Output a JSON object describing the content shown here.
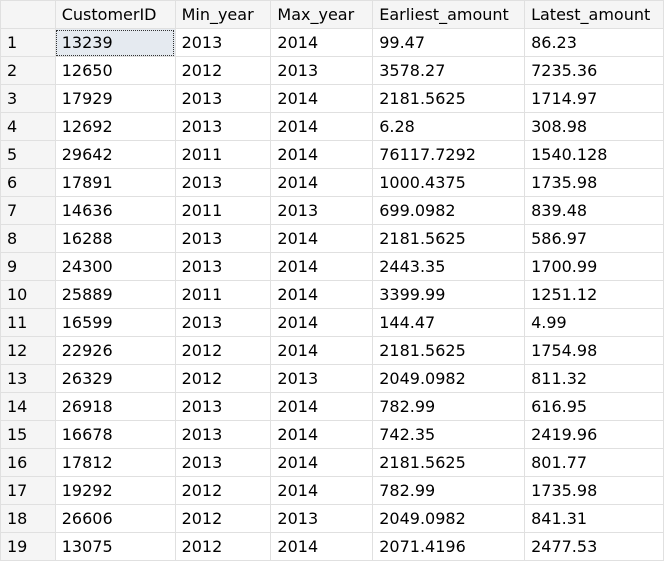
{
  "columns": [
    "",
    "CustomerID",
    "Min_year",
    "Max_year",
    "Earliest_amount",
    "Latest_amount"
  ],
  "rows": [
    [
      "1",
      "13239",
      "2013",
      "2014",
      "99.47",
      "86.23"
    ],
    [
      "2",
      "12650",
      "2012",
      "2013",
      "3578.27",
      "7235.36"
    ],
    [
      "3",
      "17929",
      "2013",
      "2014",
      "2181.5625",
      "1714.97"
    ],
    [
      "4",
      "12692",
      "2013",
      "2014",
      "6.28",
      "308.98"
    ],
    [
      "5",
      "29642",
      "2011",
      "2014",
      "76117.7292",
      "1540.128"
    ],
    [
      "6",
      "17891",
      "2013",
      "2014",
      "1000.4375",
      "1735.98"
    ],
    [
      "7",
      "14636",
      "2011",
      "2013",
      "699.0982",
      "839.48"
    ],
    [
      "8",
      "16288",
      "2013",
      "2014",
      "2181.5625",
      "586.97"
    ],
    [
      "9",
      "24300",
      "2013",
      "2014",
      "2443.35",
      "1700.99"
    ],
    [
      "10",
      "25889",
      "2011",
      "2014",
      "3399.99",
      "1251.12"
    ],
    [
      "11",
      "16599",
      "2013",
      "2014",
      "144.47",
      "4.99"
    ],
    [
      "12",
      "22926",
      "2012",
      "2014",
      "2181.5625",
      "1754.98"
    ],
    [
      "13",
      "26329",
      "2012",
      "2013",
      "2049.0982",
      "811.32"
    ],
    [
      "14",
      "26918",
      "2013",
      "2014",
      "782.99",
      "616.95"
    ],
    [
      "15",
      "16678",
      "2013",
      "2014",
      "742.35",
      "2419.96"
    ],
    [
      "16",
      "17812",
      "2013",
      "2014",
      "2181.5625",
      "801.77"
    ],
    [
      "17",
      "19292",
      "2012",
      "2014",
      "782.99",
      "1735.98"
    ],
    [
      "18",
      "26606",
      "2012",
      "2013",
      "2049.0982",
      "841.31"
    ],
    [
      "19",
      "13075",
      "2012",
      "2014",
      "2071.4196",
      "2477.53"
    ]
  ],
  "selected_cell": {
    "row": 0,
    "col": 1
  }
}
